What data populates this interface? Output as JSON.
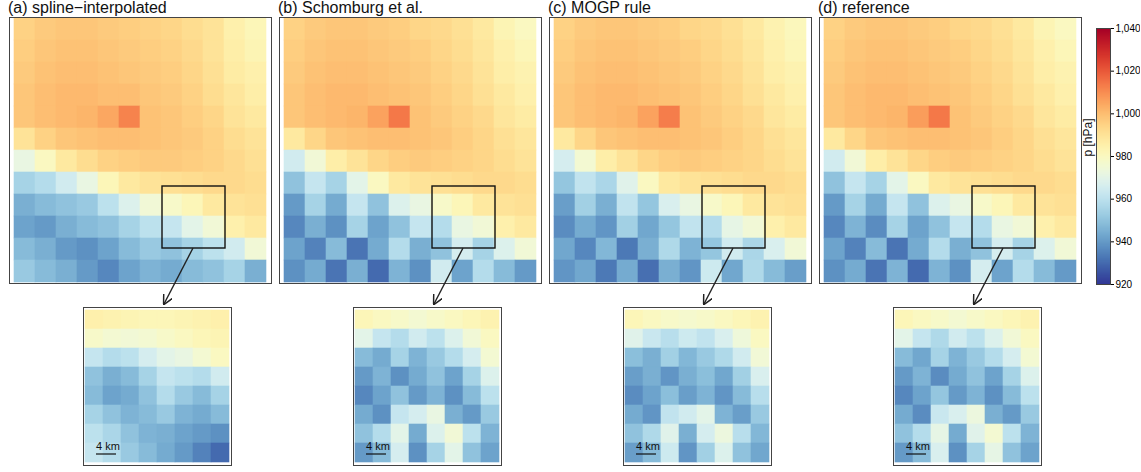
{
  "chart_data": {
    "type": "heatmap",
    "color_label": "p [hPa]",
    "color_range": [
      920,
      1040
    ],
    "color_ticks": [
      920,
      940,
      960,
      980,
      1000,
      1020,
      1040
    ],
    "panels": [
      {
        "title": "(a) spline−interpolated",
        "tick_labels": false,
        "cells": [
          [
            995,
            997,
            998,
            998,
            997,
            996,
            995,
            994,
            992,
            990,
            985,
            982
          ],
          [
            996,
            998,
            999,
            999,
            998,
            997,
            996,
            995,
            993,
            990,
            986,
            983
          ],
          [
            997,
            999,
            1000,
            1000,
            999,
            998,
            997,
            996,
            994,
            991,
            987,
            985
          ],
          [
            998,
            1000,
            1001,
            1001,
            1000,
            1000,
            998,
            997,
            995,
            992,
            989,
            986
          ],
          [
            998,
            1000,
            1001,
            1002,
            1005,
            1012,
            999,
            998,
            996,
            994,
            990,
            988
          ],
          [
            990,
            995,
            998,
            999,
            1000,
            1000,
            999,
            998,
            997,
            995,
            992,
            990
          ],
          [
            972,
            980,
            988,
            992,
            995,
            996,
            997,
            997,
            996,
            995,
            993,
            991
          ],
          [
            955,
            958,
            965,
            972,
            982,
            988,
            990,
            991,
            992,
            993,
            993,
            992
          ],
          [
            945,
            948,
            950,
            952,
            960,
            968,
            975,
            978,
            982,
            988,
            990,
            991
          ],
          [
            942,
            940,
            945,
            948,
            950,
            955,
            960,
            962,
            970,
            975,
            985,
            988
          ],
          [
            948,
            945,
            940,
            938,
            942,
            948,
            952,
            950,
            955,
            960,
            965,
            975
          ],
          [
            952,
            948,
            945,
            940,
            936,
            942,
            946,
            944,
            948,
            950,
            955,
            945
          ]
        ],
        "inset": {
          "scale_bar": "4 km",
          "cells": [
            [
              985,
              984,
              983,
              982,
              982,
              983,
              984,
              985
            ],
            [
              978,
              976,
              975,
              976,
              978,
              980,
              982,
              983
            ],
            [
              962,
              958,
              960,
              966,
              970,
              972,
              976,
              980
            ],
            [
              950,
              945,
              948,
              955,
              962,
              960,
              958,
              965
            ],
            [
              948,
              942,
              944,
              950,
              958,
              952,
              948,
              955
            ],
            [
              955,
              950,
              946,
              948,
              952,
              946,
              944,
              948
            ],
            [
              960,
              956,
              950,
              946,
              945,
              942,
              940,
              938
            ],
            [
              962,
              958,
              952,
              948,
              944,
              940,
              935,
              930
            ]
          ]
        }
      },
      {
        "title": "(b) Schomburg et al.",
        "tick_labels": false,
        "cells": [
          [
            995,
            997,
            998,
            998,
            997,
            996,
            994,
            993,
            991,
            988,
            983,
            980
          ],
          [
            996,
            998,
            999,
            999,
            998,
            997,
            996,
            994,
            992,
            989,
            985,
            982
          ],
          [
            997,
            999,
            1000,
            1000,
            999,
            998,
            997,
            995,
            993,
            990,
            986,
            984
          ],
          [
            998,
            1000,
            1001,
            1001,
            1000,
            999,
            998,
            996,
            994,
            991,
            988,
            985
          ],
          [
            998,
            1000,
            1001,
            1002,
            1006,
            1014,
            999,
            997,
            995,
            993,
            989,
            987
          ],
          [
            988,
            994,
            998,
            999,
            1000,
            1000,
            999,
            998,
            996,
            994,
            991,
            989
          ],
          [
            965,
            975,
            986,
            990,
            994,
            996,
            997,
            996,
            995,
            994,
            992,
            990
          ],
          [
            950,
            962,
            955,
            970,
            980,
            988,
            990,
            991,
            992,
            993,
            993,
            992
          ],
          [
            940,
            955,
            944,
            962,
            950,
            968,
            972,
            978,
            982,
            988,
            990,
            991
          ],
          [
            936,
            945,
            938,
            955,
            942,
            950,
            962,
            958,
            972,
            975,
            985,
            988
          ],
          [
            942,
            935,
            948,
            932,
            944,
            958,
            945,
            950,
            966,
            955,
            968,
            975
          ],
          [
            938,
            944,
            932,
            945,
            930,
            946,
            938,
            965,
            942,
            958,
            948,
            940
          ]
        ],
        "inset": {
          "scale_bar": "4 km",
          "cells": [
            [
              982,
              980,
              978,
              976,
              978,
              980,
              982,
              984
            ],
            [
              970,
              962,
              958,
              965,
              960,
              968,
              975,
              980
            ],
            [
              948,
              944,
              955,
              946,
              952,
              958,
              966,
              976
            ],
            [
              940,
              946,
              938,
              944,
              950,
              942,
              955,
              968
            ],
            [
              936,
              942,
              950,
              940,
              946,
              938,
              948,
              960
            ],
            [
              944,
              938,
              962,
              966,
              972,
              945,
              940,
              952
            ],
            [
              950,
              958,
              970,
              944,
              968,
              975,
              960,
              946
            ],
            [
              940,
              948,
              966,
              938,
              955,
              970,
              950,
              942
            ]
          ]
        }
      },
      {
        "title": "(c) MOGP rule",
        "tick_labels": false,
        "cells": [
          [
            995,
            997,
            998,
            998,
            997,
            996,
            994,
            993,
            991,
            988,
            984,
            981
          ],
          [
            996,
            998,
            999,
            999,
            998,
            997,
            996,
            994,
            992,
            989,
            985,
            982
          ],
          [
            997,
            999,
            1000,
            1000,
            999,
            998,
            997,
            995,
            993,
            990,
            986,
            984
          ],
          [
            998,
            1000,
            1001,
            1001,
            1000,
            999,
            998,
            996,
            994,
            991,
            988,
            985
          ],
          [
            998,
            1000,
            1001,
            1002,
            1006,
            1013,
            999,
            997,
            995,
            993,
            989,
            987
          ],
          [
            988,
            994,
            998,
            999,
            1000,
            1000,
            999,
            998,
            996,
            994,
            991,
            989
          ],
          [
            966,
            976,
            986,
            990,
            994,
            996,
            997,
            996,
            995,
            994,
            992,
            990
          ],
          [
            951,
            961,
            956,
            969,
            980,
            988,
            990,
            991,
            992,
            993,
            993,
            992
          ],
          [
            941,
            954,
            945,
            961,
            951,
            967,
            972,
            978,
            982,
            988,
            990,
            991
          ],
          [
            937,
            944,
            939,
            954,
            943,
            951,
            961,
            958,
            971,
            975,
            985,
            988
          ],
          [
            943,
            936,
            947,
            933,
            945,
            957,
            946,
            951,
            965,
            956,
            967,
            975
          ],
          [
            939,
            943,
            933,
            944,
            931,
            945,
            939,
            964,
            943,
            957,
            948,
            941
          ]
        ],
        "inset": {
          "scale_bar": "4 km",
          "cells": [
            [
              982,
              980,
              978,
              977,
              978,
              980,
              982,
              984
            ],
            [
              969,
              963,
              959,
              964,
              961,
              967,
              974,
              980
            ],
            [
              949,
              945,
              954,
              947,
              952,
              957,
              965,
              975
            ],
            [
              941,
              945,
              939,
              945,
              949,
              943,
              954,
              967
            ],
            [
              937,
              942,
              949,
              941,
              946,
              939,
              948,
              959
            ],
            [
              944,
              939,
              961,
              965,
              970,
              946,
              941,
              952
            ],
            [
              950,
              957,
              969,
              945,
              966,
              973,
              959,
              947
            ],
            [
              941,
              948,
              964,
              939,
              954,
              968,
              950,
              943
            ]
          ]
        }
      },
      {
        "title": "(d) reference",
        "tick_labels": false,
        "cells": [
          [
            995,
            997,
            998,
            998,
            997,
            996,
            994,
            993,
            991,
            988,
            983,
            980
          ],
          [
            996,
            998,
            999,
            999,
            998,
            997,
            996,
            994,
            992,
            989,
            985,
            982
          ],
          [
            997,
            999,
            1000,
            1000,
            999,
            998,
            997,
            995,
            993,
            990,
            986,
            984
          ],
          [
            998,
            1000,
            1001,
            1001,
            1000,
            999,
            998,
            996,
            994,
            991,
            988,
            985
          ],
          [
            998,
            1000,
            1001,
            1002,
            1007,
            1014,
            999,
            997,
            995,
            993,
            989,
            987
          ],
          [
            988,
            994,
            998,
            999,
            1000,
            1000,
            999,
            998,
            996,
            994,
            991,
            989
          ],
          [
            965,
            975,
            986,
            990,
            994,
            996,
            997,
            996,
            995,
            994,
            992,
            990
          ],
          [
            950,
            962,
            955,
            970,
            980,
            988,
            990,
            991,
            992,
            993,
            993,
            992
          ],
          [
            940,
            955,
            944,
            962,
            950,
            968,
            972,
            978,
            982,
            988,
            990,
            991
          ],
          [
            936,
            946,
            937,
            955,
            942,
            950,
            962,
            958,
            972,
            975,
            985,
            988
          ],
          [
            942,
            935,
            948,
            932,
            944,
            958,
            945,
            950,
            966,
            955,
            968,
            975
          ],
          [
            938,
            944,
            932,
            946,
            930,
            946,
            938,
            966,
            942,
            958,
            948,
            940
          ]
        ],
        "inset": {
          "scale_bar": "4 km",
          "cells": [
            [
              982,
              980,
              978,
              976,
              978,
              980,
              982,
              984
            ],
            [
              970,
              962,
              957,
              965,
              960,
              968,
              975,
              980
            ],
            [
              948,
              943,
              955,
              946,
              952,
              958,
              966,
              976
            ],
            [
              940,
              946,
              937,
              944,
              950,
              942,
              955,
              968
            ],
            [
              936,
              942,
              951,
              940,
              946,
              938,
              948,
              960
            ],
            [
              944,
              937,
              963,
              967,
              973,
              945,
              940,
              952
            ],
            [
              950,
              958,
              971,
              944,
              969,
              976,
              960,
              946
            ],
            [
              940,
              948,
              967,
              938,
              955,
              971,
              950,
              942
            ]
          ]
        }
      }
    ]
  }
}
